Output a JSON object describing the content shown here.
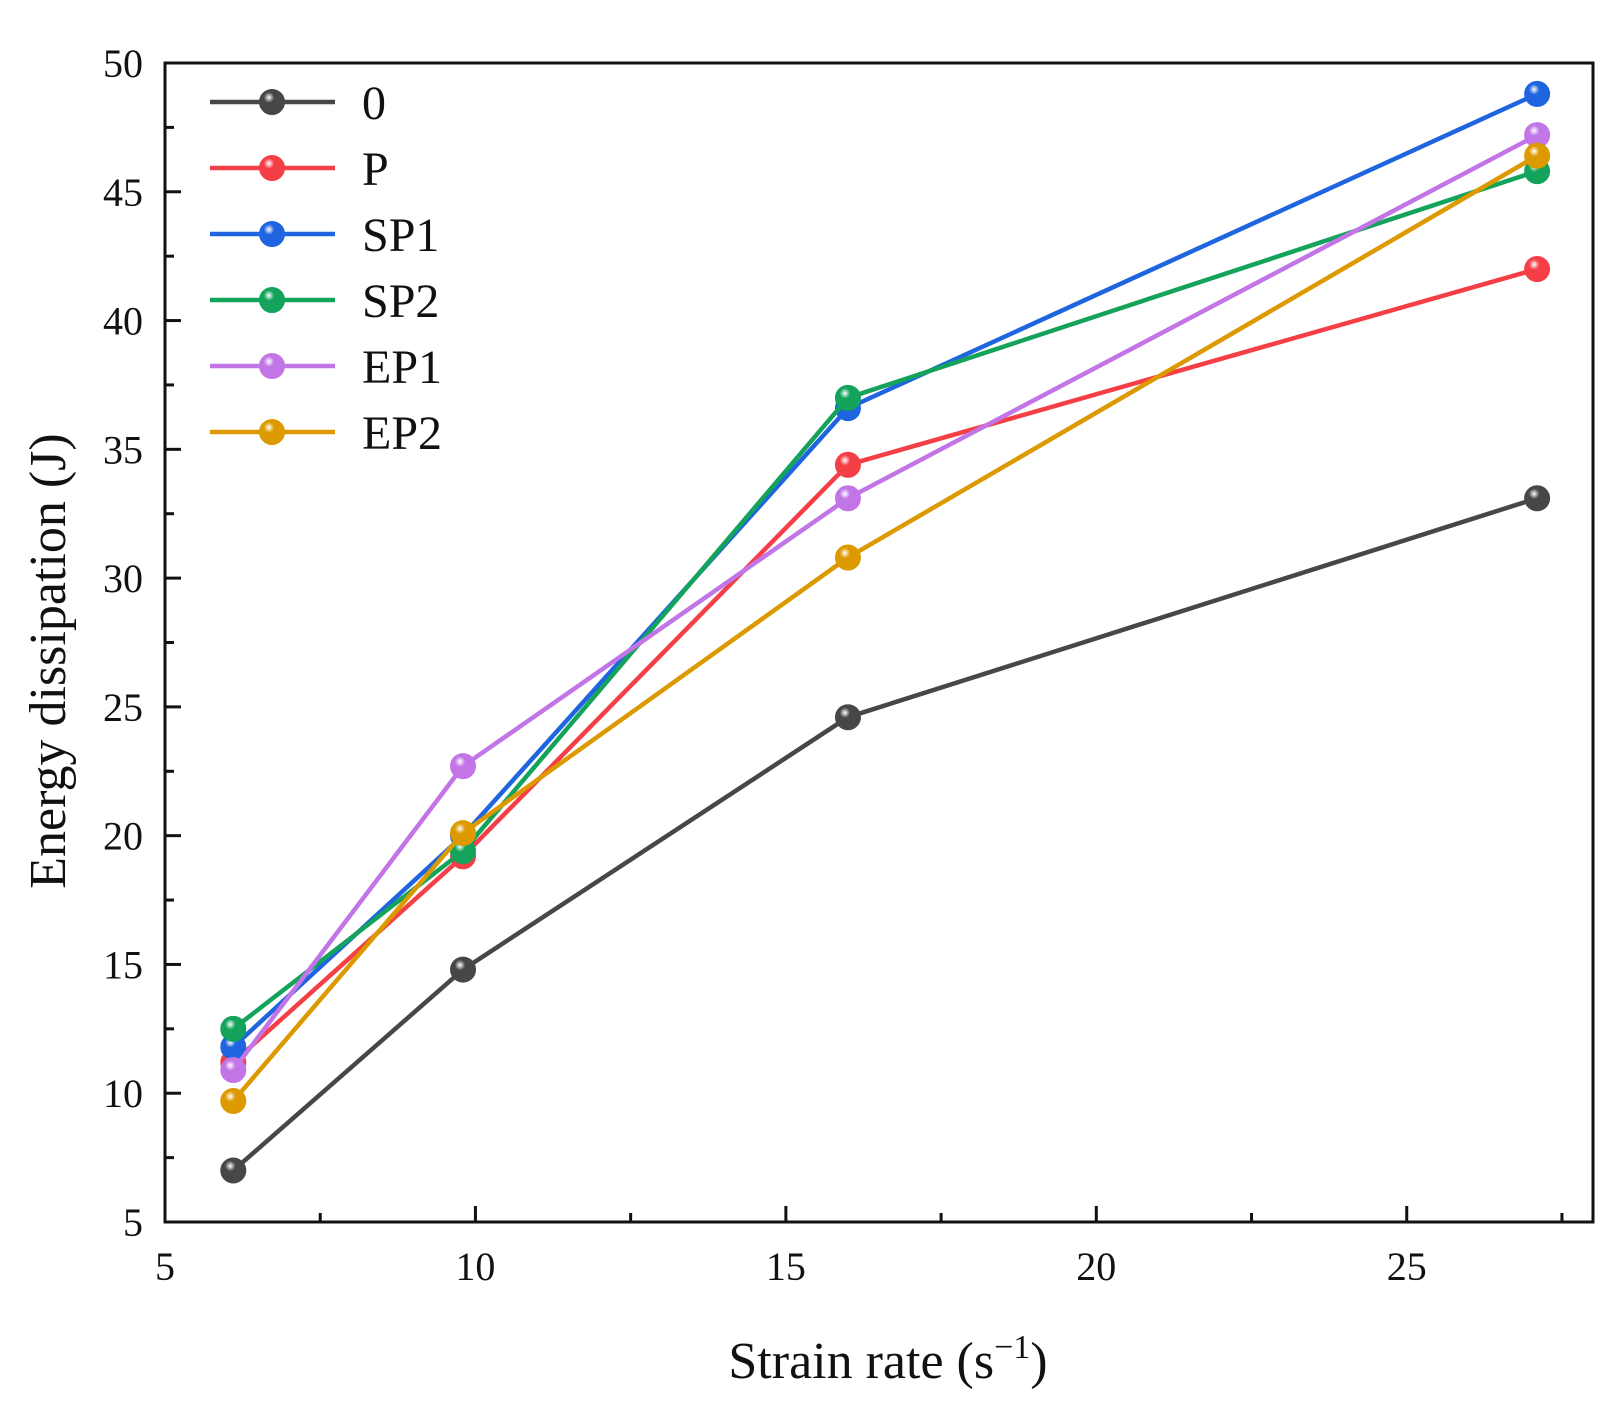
{
  "chart_data": {
    "type": "line",
    "title": "",
    "xlabel": "Strain rate (s",
    "xlabel_sup": "−1",
    "xlabel_end": ")",
    "ylabel": "Energy dissipation (J)",
    "xlim": [
      5,
      28
    ],
    "ylim": [
      5,
      50
    ],
    "x_ticks": [
      5,
      10,
      15,
      20,
      25
    ],
    "x_tick_labels": [
      "5",
      "10",
      "15",
      "20",
      "25"
    ],
    "y_ticks": [
      5,
      10,
      15,
      20,
      25,
      30,
      35,
      40,
      45,
      50
    ],
    "y_tick_labels": [
      "5",
      "10",
      "15",
      "20",
      "25",
      "30",
      "35",
      "40",
      "45",
      "50"
    ],
    "grid": false,
    "legend_position": "top-left",
    "x": [
      6.1,
      9.8,
      16.0,
      27.1
    ],
    "series": [
      {
        "name": "0",
        "color": "#474747",
        "values": [
          7.0,
          14.8,
          24.6,
          33.1
        ]
      },
      {
        "name": "P",
        "color": "#f43f46",
        "values": [
          11.2,
          19.2,
          34.4,
          42.0
        ]
      },
      {
        "name": "SP1",
        "color": "#1f65e0",
        "values": [
          11.8,
          20.0,
          36.6,
          48.8
        ]
      },
      {
        "name": "SP2",
        "color": "#14a35a",
        "values": [
          12.5,
          19.4,
          37.0,
          45.8
        ]
      },
      {
        "name": "EP1",
        "color": "#c275e6",
        "values": [
          10.9,
          22.7,
          33.1,
          47.2
        ]
      },
      {
        "name": "EP2",
        "color": "#dc9a00",
        "values": [
          9.7,
          20.1,
          30.8,
          46.4
        ]
      }
    ]
  }
}
